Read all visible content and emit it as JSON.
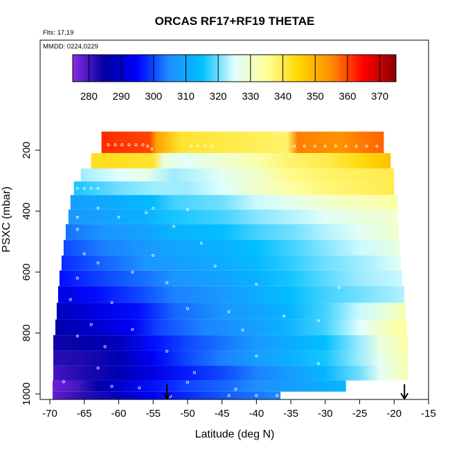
{
  "chart_data": {
    "type": "heatmap",
    "title": "ORCAS RF17+RF19 THETAE",
    "notes": [
      "Flts: 17,19",
      "MMDD: 0224,0229"
    ],
    "xlabel": "Latitude (deg N)",
    "ylabel": "PSXC (mbar)",
    "xlim": [
      -70,
      -15
    ],
    "ylim": [
      1010,
      100
    ],
    "x_ticks": [
      -70,
      -65,
      -60,
      -55,
      -50,
      -45,
      -40,
      -35,
      -30,
      -25,
      -20,
      -15
    ],
    "y_ticks": [
      200,
      400,
      600,
      800,
      1000
    ],
    "colorbar": {
      "range": [
        275,
        375
      ],
      "ticks": [
        280,
        290,
        300,
        310,
        320,
        330,
        340,
        350,
        360,
        370
      ],
      "colors": [
        "#8a2be2",
        "#0000a0",
        "#0000ff",
        "#1e90ff",
        "#00bfff",
        "#e0ffff",
        "#ffff99",
        "#ffd700",
        "#ff8c00",
        "#ff0000",
        "#8b0000"
      ]
    },
    "arrows_lat": [
      -53,
      -18.5
    ],
    "rows": [
      {
        "p": 182,
        "lat0": -62.5,
        "lat1": -21.5,
        "pts": [
          [
            -62.5,
            362
          ],
          [
            -55.5,
            360
          ],
          [
            -54.5,
            352
          ],
          [
            -51,
            342
          ],
          [
            -35.5,
            338
          ],
          [
            -34,
            356
          ],
          [
            -28,
            354
          ],
          [
            -21.5,
            358
          ]
        ]
      },
      {
        "p": 237,
        "lat0": -64,
        "lat1": -20.5,
        "pts": [
          [
            -64,
            343
          ],
          [
            -60,
            343
          ],
          [
            -55,
            342
          ],
          [
            -53.5,
            328
          ],
          [
            -50,
            326
          ],
          [
            -40,
            333
          ],
          [
            -35,
            338
          ],
          [
            -30,
            340
          ],
          [
            -25,
            344
          ],
          [
            -20.5,
            348
          ]
        ]
      },
      {
        "p": 283,
        "lat0": -65.5,
        "lat1": -20,
        "pts": [
          [
            -65.5,
            322
          ],
          [
            -60,
            325
          ],
          [
            -56,
            327
          ],
          [
            -52,
            322
          ],
          [
            -45,
            326
          ],
          [
            -40,
            330
          ],
          [
            -35,
            336
          ],
          [
            -30,
            338
          ],
          [
            -20,
            340
          ]
        ]
      },
      {
        "p": 322,
        "lat0": -66.5,
        "lat1": -20,
        "pts": [
          [
            -66.5,
            316
          ],
          [
            -60,
            320
          ],
          [
            -55,
            322
          ],
          [
            -50,
            322
          ],
          [
            -45,
            325
          ],
          [
            -40,
            330
          ],
          [
            -35,
            334
          ],
          [
            -30,
            337
          ],
          [
            -20,
            340
          ]
        ]
      },
      {
        "p": 372,
        "lat0": -67,
        "lat1": -19.5,
        "pts": [
          [
            -67,
            308
          ],
          [
            -62,
            310
          ],
          [
            -55,
            314
          ],
          [
            -52,
            318
          ],
          [
            -45,
            320
          ],
          [
            -40,
            324
          ],
          [
            -35,
            327
          ],
          [
            -30,
            330
          ],
          [
            -25,
            332
          ],
          [
            -19.5,
            334
          ]
        ]
      },
      {
        "p": 418,
        "lat0": -67.3,
        "lat1": -19.5,
        "pts": [
          [
            -67.3,
            306
          ],
          [
            -62,
            309
          ],
          [
            -56,
            312
          ],
          [
            -52,
            316
          ],
          [
            -45,
            318
          ],
          [
            -40,
            321
          ],
          [
            -35,
            323
          ],
          [
            -30,
            326
          ],
          [
            -25,
            328
          ],
          [
            -19.5,
            330
          ]
        ]
      },
      {
        "p": 467,
        "lat0": -67.7,
        "lat1": -19.3,
        "pts": [
          [
            -67.7,
            303
          ],
          [
            -62,
            306
          ],
          [
            -56,
            309
          ],
          [
            -53,
            312
          ],
          [
            -45,
            315
          ],
          [
            -40,
            318
          ],
          [
            -35,
            320
          ],
          [
            -30,
            323
          ],
          [
            -25,
            326
          ],
          [
            -19.3,
            330
          ]
        ]
      },
      {
        "p": 522,
        "lat0": -68,
        "lat1": -19.2,
        "pts": [
          [
            -68,
            300
          ],
          [
            -62,
            304
          ],
          [
            -56,
            307
          ],
          [
            -53,
            309
          ],
          [
            -45,
            312
          ],
          [
            -40,
            315
          ],
          [
            -35,
            318
          ],
          [
            -30,
            321
          ],
          [
            -25,
            324
          ],
          [
            -19.2,
            328
          ]
        ]
      },
      {
        "p": 570,
        "lat0": -68.3,
        "lat1": -19,
        "pts": [
          [
            -68.3,
            298
          ],
          [
            -62,
            302
          ],
          [
            -56,
            306
          ],
          [
            -52,
            308
          ],
          [
            -45,
            311
          ],
          [
            -40,
            314
          ],
          [
            -35,
            317
          ],
          [
            -30,
            320
          ],
          [
            -25,
            322
          ],
          [
            -19,
            326
          ]
        ]
      },
      {
        "p": 620,
        "lat0": -68.6,
        "lat1": -18.8,
        "pts": [
          [
            -68.6,
            296
          ],
          [
            -62,
            300
          ],
          [
            -56,
            303
          ],
          [
            -52,
            306
          ],
          [
            -45,
            309
          ],
          [
            -40,
            312
          ],
          [
            -35,
            316
          ],
          [
            -30,
            319
          ],
          [
            -25,
            322
          ],
          [
            -18.8,
            324
          ]
        ]
      },
      {
        "p": 672,
        "lat0": -68.8,
        "lat1": -18.5,
        "pts": [
          [
            -68.8,
            292
          ],
          [
            -63,
            296
          ],
          [
            -57,
            300
          ],
          [
            -52,
            304
          ],
          [
            -45,
            307
          ],
          [
            -40,
            311
          ],
          [
            -35,
            315
          ],
          [
            -30,
            318
          ],
          [
            -25,
            320
          ],
          [
            -18.5,
            323
          ]
        ]
      },
      {
        "p": 730,
        "lat0": -69,
        "lat1": -18.3,
        "pts": [
          [
            -69,
            288
          ],
          [
            -63,
            292
          ],
          [
            -57,
            296
          ],
          [
            -52,
            302
          ],
          [
            -45,
            306
          ],
          [
            -40,
            309
          ],
          [
            -35,
            313
          ],
          [
            -30,
            318
          ],
          [
            -25,
            324
          ],
          [
            -20,
            330
          ],
          [
            -18.3,
            333
          ]
        ]
      },
      {
        "p": 782,
        "lat0": -69.2,
        "lat1": -18.2,
        "pts": [
          [
            -69.2,
            286
          ],
          [
            -63,
            290
          ],
          [
            -58,
            294
          ],
          [
            -54,
            300
          ],
          [
            -48,
            304
          ],
          [
            -42,
            307
          ],
          [
            -36,
            312
          ],
          [
            -30,
            318
          ],
          [
            -25,
            325
          ],
          [
            -21,
            332
          ],
          [
            -18.2,
            335
          ]
        ]
      },
      {
        "p": 832,
        "lat0": -69.5,
        "lat1": -18,
        "pts": [
          [
            -69.5,
            284
          ],
          [
            -64,
            286
          ],
          [
            -60,
            288
          ],
          [
            -55,
            296
          ],
          [
            -50,
            300
          ],
          [
            -45,
            303
          ],
          [
            -40,
            307
          ],
          [
            -35,
            311
          ],
          [
            -30,
            315
          ],
          [
            -25,
            322
          ],
          [
            -22,
            328
          ],
          [
            -18,
            334
          ]
        ]
      },
      {
        "p": 882,
        "lat0": -69.5,
        "lat1": -18,
        "pts": [
          [
            -69.5,
            282
          ],
          [
            -65,
            283
          ],
          [
            -60,
            287
          ],
          [
            -55,
            294
          ],
          [
            -50,
            300
          ],
          [
            -45,
            304
          ],
          [
            -40,
            308
          ],
          [
            -35,
            312
          ],
          [
            -30,
            316
          ],
          [
            -25,
            322
          ],
          [
            -22,
            327
          ],
          [
            -18,
            333
          ]
        ]
      },
      {
        "p": 932,
        "lat0": -69.5,
        "lat1": -18,
        "pts": [
          [
            -69.5,
            280
          ],
          [
            -65,
            283
          ],
          [
            -60,
            287
          ],
          [
            -55,
            292
          ],
          [
            -50,
            297
          ],
          [
            -45,
            300
          ],
          [
            -40,
            304
          ],
          [
            -35,
            308
          ],
          [
            -30,
            313
          ],
          [
            -25,
            320
          ],
          [
            -22,
            326
          ],
          [
            -18,
            332
          ]
        ]
      },
      {
        "p": 980,
        "lat0": -69.6,
        "lat1": -27,
        "pts": [
          [
            -69.6,
            277
          ],
          [
            -66,
            280
          ],
          [
            -63,
            286
          ],
          [
            -60,
            290
          ],
          [
            -55,
            296
          ],
          [
            -50,
            300
          ],
          [
            -45,
            302
          ],
          [
            -40,
            305
          ],
          [
            -35,
            308
          ],
          [
            -30,
            311
          ],
          [
            -27,
            313
          ]
        ]
      },
      {
        "p": 1005,
        "lat0": -69.6,
        "lat1": -36.5,
        "pts": [
          [
            -69.6,
            278
          ],
          [
            -65,
            282
          ],
          [
            -60,
            288
          ],
          [
            -55,
            294
          ],
          [
            -50,
            298
          ],
          [
            -45,
            301
          ],
          [
            -40,
            303
          ],
          [
            -36.5,
            305
          ]
        ]
      }
    ],
    "markers": [
      [
        -61.5,
        182
      ],
      [
        -60.5,
        182
      ],
      [
        -59.5,
        182
      ],
      [
        -58.5,
        182
      ],
      [
        -57.5,
        182
      ],
      [
        -56.5,
        182
      ],
      [
        -55.8,
        187
      ],
      [
        -55.2,
        196
      ],
      [
        -49.5,
        187
      ],
      [
        -48.5,
        187
      ],
      [
        -47.5,
        187
      ],
      [
        -46.5,
        187
      ],
      [
        -34.5,
        187
      ],
      [
        -33,
        187
      ],
      [
        -31.5,
        187
      ],
      [
        -30,
        187
      ],
      [
        -28.5,
        187
      ],
      [
        -27,
        187
      ],
      [
        -25.5,
        187
      ],
      [
        -24,
        187
      ],
      [
        -22.5,
        187
      ],
      [
        -66,
        325
      ],
      [
        -65,
        325
      ],
      [
        -64,
        325
      ],
      [
        -63,
        325
      ],
      [
        -63,
        390
      ],
      [
        -55,
        390
      ],
      [
        -50,
        395
      ],
      [
        -56,
        405
      ],
      [
        -66,
        420
      ],
      [
        -60,
        420
      ],
      [
        -52,
        450
      ],
      [
        -66,
        460
      ],
      [
        -48,
        505
      ],
      [
        -65,
        540
      ],
      [
        -55,
        545
      ],
      [
        -63,
        570
      ],
      [
        -46,
        580
      ],
      [
        -58,
        600
      ],
      [
        -66,
        620
      ],
      [
        -53,
        635
      ],
      [
        -40,
        640
      ],
      [
        -28,
        650
      ],
      [
        -67,
        690
      ],
      [
        -61,
        700
      ],
      [
        -50,
        720
      ],
      [
        -44,
        730
      ],
      [
        -36,
        745
      ],
      [
        -31,
        760
      ],
      [
        -64,
        772
      ],
      [
        -58,
        788
      ],
      [
        -42,
        790
      ],
      [
        -19,
        795
      ],
      [
        -66,
        810
      ],
      [
        -62,
        845
      ],
      [
        -53,
        860
      ],
      [
        -40,
        875
      ],
      [
        -31,
        900
      ],
      [
        -63,
        915
      ],
      [
        -49,
        930
      ],
      [
        -68,
        960
      ],
      [
        -61,
        975
      ],
      [
        -57,
        980
      ],
      [
        -43,
        985
      ],
      [
        -50,
        962
      ],
      [
        -44,
        1005
      ],
      [
        -40,
        1005
      ],
      [
        -37,
        1005
      ],
      [
        -52.5,
        1008
      ]
    ]
  }
}
